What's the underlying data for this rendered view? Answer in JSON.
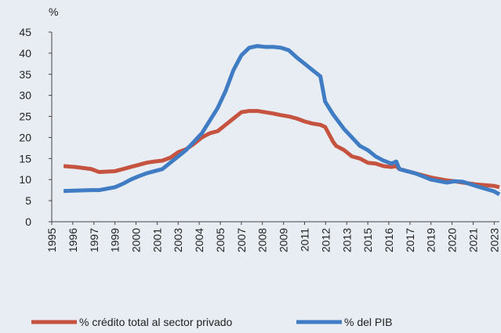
{
  "chart_data": {
    "type": "line",
    "y_label": "%",
    "x": [
      1995.75,
      1996.5,
      1997.5,
      1998,
      1999,
      1999.5,
      2000,
      2000.5,
      2001,
      2001.5,
      2002,
      2002.5,
      2003,
      2003.5,
      2004,
      2004.5,
      2005,
      2005.5,
      2006,
      2006.5,
      2007,
      2007.5,
      2008,
      2008.5,
      2009,
      2009.5,
      2010,
      2010.5,
      2011,
      2011.5,
      2012,
      2012.3,
      2012.8,
      2013,
      2013.5,
      2014,
      2014.5,
      2015,
      2015.5,
      2016,
      2016.5,
      2016.8,
      2017,
      2018,
      2019,
      2020,
      2020.5,
      2021,
      2022,
      2023,
      2023.33
    ],
    "series": [
      {
        "name": "% crédito total al sector privado",
        "color": "#c5533f",
        "values": [
          13.2,
          13,
          12.5,
          11.8,
          12,
          12.5,
          13,
          13.5,
          14,
          14.3,
          14.5,
          15.2,
          16.5,
          17.2,
          18.5,
          20,
          21,
          21.5,
          23,
          24.5,
          26,
          26.3,
          26.3,
          26,
          25.7,
          25.3,
          25,
          24.5,
          23.8,
          23.3,
          23,
          22.5,
          19,
          18,
          17,
          15.5,
          15,
          14,
          13.8,
          13.2,
          13,
          13.2,
          12.5,
          11.5,
          10.5,
          9.8,
          9.6,
          9.3,
          8.8,
          8.5,
          8.2
        ]
      },
      {
        "name": "% del PIB",
        "color": "#3f7cc4",
        "values": [
          7.3,
          7.4,
          7.5,
          7.5,
          8.2,
          9,
          10,
          10.8,
          11.5,
          12,
          12.5,
          14,
          15.5,
          17,
          19,
          21,
          24,
          27,
          31,
          36,
          39.5,
          41.3,
          41.7,
          41.5,
          41.5,
          41.3,
          40.7,
          39,
          37.5,
          36,
          34.5,
          28.5,
          25.5,
          24.5,
          22,
          20,
          18,
          17,
          15.5,
          14.5,
          13.8,
          14.3,
          12.5,
          11.5,
          10,
          9.3,
          9.6,
          9.5,
          8.3,
          7.2,
          6.5
        ]
      }
    ],
    "xlim": [
      1995,
      2023.33
    ],
    "xticks": [
      1995,
      {
        "value": 1996.33,
        "label": "1996"
      },
      {
        "value": 1997.67,
        "label": "1997"
      },
      1999,
      {
        "value": 2000.33,
        "label": "2000"
      },
      {
        "value": 2001.67,
        "label": "2001"
      },
      2003,
      {
        "value": 2004.33,
        "label": "2004"
      },
      {
        "value": 2005.67,
        "label": "2005"
      },
      2007,
      {
        "value": 2008.33,
        "label": "2008"
      },
      {
        "value": 2009.67,
        "label": "2009"
      },
      2011,
      {
        "value": 2012.33,
        "label": "2012"
      },
      {
        "value": 2013.67,
        "label": "2013"
      },
      2015,
      {
        "value": 2016.33,
        "label": "2016"
      },
      {
        "value": 2017.67,
        "label": "2017"
      },
      2019,
      {
        "value": 2020.33,
        "label": "2020"
      },
      {
        "value": 2021.67,
        "label": "2021"
      },
      2023
    ],
    "ylim": [
      0,
      45
    ],
    "yticks": [
      0,
      5,
      10,
      15,
      20,
      25,
      30,
      35,
      40,
      45
    ],
    "grid": false
  }
}
